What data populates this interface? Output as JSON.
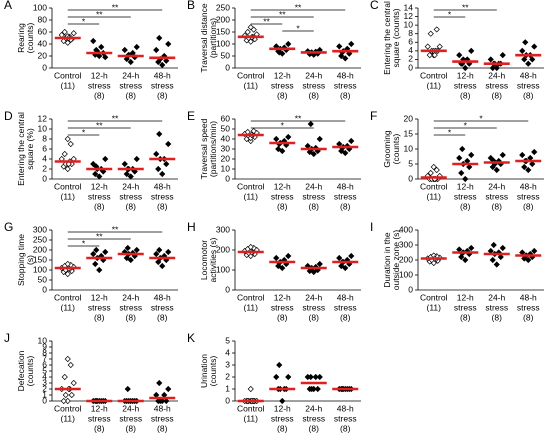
{
  "chart_data": [
    {
      "type": "dot",
      "panel": "A",
      "ylabel": [
        "Rearing",
        "(counts)"
      ],
      "categories": [
        [
          "Control",
          "(11)"
        ],
        [
          "12-h",
          "stress",
          "(8)"
        ],
        [
          "24-h",
          "stress",
          "(8)"
        ],
        [
          "48-h",
          "stress",
          "(8)"
        ]
      ],
      "ylim": [
        0,
        100
      ],
      "yticks": [
        0,
        20,
        40,
        60,
        80,
        100
      ],
      "points": [
        [
          42,
          45,
          48,
          50,
          52,
          55,
          58,
          60,
          47,
          53,
          50
        ],
        [
          20,
          22,
          25,
          28,
          35,
          45,
          18,
          30
        ],
        [
          10,
          15,
          18,
          22,
          25,
          30,
          35,
          20
        ],
        [
          5,
          10,
          12,
          15,
          20,
          30,
          40,
          50
        ]
      ],
      "means": [
        50,
        25,
        20,
        17
      ],
      "brackets": [
        {
          "groups": [
            0,
            3
          ],
          "label": "**"
        },
        {
          "groups": [
            0,
            2
          ],
          "label": "**"
        },
        {
          "groups": [
            0,
            1
          ],
          "label": "*"
        }
      ],
      "mean_color": "#e02020"
    },
    {
      "type": "dot",
      "panel": "B",
      "ylabel": [
        "Traversal distance",
        "(partitions)"
      ],
      "categories": [
        [
          "Control",
          "(11)"
        ],
        [
          "12-h",
          "stress",
          "(8)"
        ],
        [
          "24-h",
          "stress",
          "(8)"
        ],
        [
          "48-h",
          "stress",
          "(8)"
        ]
      ],
      "ylim": [
        0,
        250
      ],
      "yticks": [
        0,
        50,
        100,
        150,
        200,
        250
      ],
      "points": [
        [
          110,
          115,
          120,
          125,
          130,
          135,
          140,
          150,
          160,
          170,
          128
        ],
        [
          60,
          70,
          75,
          80,
          85,
          90,
          100,
          65
        ],
        [
          55,
          58,
          60,
          65,
          68,
          70,
          75,
          62
        ],
        [
          40,
          50,
          60,
          70,
          80,
          90,
          100,
          65
        ]
      ],
      "means": [
        130,
        80,
        65,
        70
      ],
      "brackets": [
        {
          "groups": [
            0,
            3
          ],
          "label": "**"
        },
        {
          "groups": [
            0,
            2
          ],
          "label": "**"
        },
        {
          "groups": [
            0,
            1
          ],
          "label": "**"
        },
        {
          "groups": [
            1,
            2
          ],
          "label": "*"
        }
      ],
      "mean_color": "#e02020"
    },
    {
      "type": "dot",
      "panel": "C",
      "ylabel": [
        "Entering the central",
        "square (counts)"
      ],
      "categories": [
        [
          "Control",
          "(11)"
        ],
        [
          "12-h",
          "stress",
          "(8)"
        ],
        [
          "24-h",
          "stress",
          "(8)"
        ],
        [
          "48-h",
          "stress",
          "(8)"
        ]
      ],
      "ylim": [
        0,
        14
      ],
      "yticks": [
        0,
        2,
        4,
        6,
        8,
        10,
        12,
        14
      ],
      "points": [
        [
          3,
          3,
          4,
          4,
          4,
          5,
          5,
          8,
          9,
          4,
          3
        ],
        [
          0,
          1,
          1,
          2,
          2,
          3,
          4,
          1
        ],
        [
          0,
          0,
          1,
          1,
          1,
          2,
          3,
          1
        ],
        [
          1,
          2,
          2,
          3,
          3,
          4,
          5,
          6
        ]
      ],
      "means": [
        4,
        1.5,
        1,
        3
      ],
      "brackets": [
        {
          "groups": [
            0,
            2
          ],
          "label": "**"
        },
        {
          "groups": [
            0,
            1
          ],
          "label": "*"
        }
      ],
      "mean_color": "#e02020"
    },
    {
      "type": "dot",
      "panel": "D",
      "ylabel": [
        "Entering the central",
        "square (%)"
      ],
      "categories": [
        [
          "Control",
          "(11)"
        ],
        [
          "12-h",
          "stress",
          "(8)"
        ],
        [
          "24-h",
          "stress",
          "(8)"
        ],
        [
          "48-h",
          "stress",
          "(8)"
        ]
      ],
      "ylim": [
        0,
        12
      ],
      "yticks": [
        0,
        2,
        4,
        6,
        8,
        10,
        12
      ],
      "points": [
        [
          2,
          2.5,
          3,
          3,
          3.5,
          4,
          4,
          5,
          7,
          8,
          3
        ],
        [
          0.5,
          1,
          1.5,
          2,
          2,
          3,
          4,
          2.5
        ],
        [
          0.5,
          1,
          1.5,
          2,
          2,
          3,
          4,
          2
        ],
        [
          1,
          2,
          3,
          4,
          4,
          5,
          7,
          9
        ]
      ],
      "means": [
        3.5,
        2,
        2,
        4
      ],
      "brackets": [
        {
          "groups": [
            0,
            3
          ],
          "label": "**"
        },
        {
          "groups": [
            0,
            2
          ],
          "label": "**"
        },
        {
          "groups": [
            0,
            1
          ],
          "label": "*"
        }
      ],
      "mean_color": "#e02020"
    },
    {
      "type": "dot",
      "panel": "E",
      "ylabel": [
        "Traversal speed",
        "(partitions/min)"
      ],
      "categories": [
        [
          "Control",
          "(11)"
        ],
        [
          "12-h",
          "stress",
          "(8)"
        ],
        [
          "24-h",
          "stress",
          "(8)"
        ],
        [
          "48-h",
          "stress",
          "(8)"
        ]
      ],
      "ylim": [
        0,
        60
      ],
      "yticks": [
        0,
        10,
        20,
        30,
        40,
        50,
        60
      ],
      "points": [
        [
          38,
          40,
          42,
          43,
          44,
          45,
          46,
          47,
          48,
          41,
          44
        ],
        [
          28,
          30,
          34,
          36,
          38,
          40,
          42,
          35
        ],
        [
          25,
          27,
          28,
          30,
          31,
          33,
          40,
          55
        ],
        [
          26,
          28,
          30,
          32,
          33,
          35,
          38,
          31
        ]
      ],
      "means": [
        44,
        36,
        30,
        32
      ],
      "brackets": [
        {
          "groups": [
            0,
            3
          ],
          "label": "**"
        },
        {
          "groups": [
            0,
            2
          ],
          "label": "*"
        }
      ],
      "mean_color": "#e02020"
    },
    {
      "type": "dot",
      "panel": "F",
      "ylabel": [
        "Grooming",
        "(counts)"
      ],
      "categories": [
        [
          "Control",
          "(11)"
        ],
        [
          "12-h",
          "stress",
          "(8)"
        ],
        [
          "24-h",
          "stress",
          "(8)"
        ],
        [
          "48-h",
          "stress",
          "(8)"
        ]
      ],
      "ylim": [
        0,
        20
      ],
      "yticks": [
        0,
        5,
        10,
        15,
        20
      ],
      "points": [
        [
          0,
          0,
          0,
          0,
          0,
          1,
          1,
          2,
          3,
          4,
          0
        ],
        [
          0,
          2,
          4,
          5,
          6,
          7,
          8,
          10
        ],
        [
          3,
          4,
          5,
          5,
          6,
          7,
          8,
          6
        ],
        [
          3,
          4,
          5,
          6,
          7,
          8,
          9,
          6
        ]
      ],
      "means": [
        0.5,
        5,
        5.5,
        6
      ],
      "brackets": [
        {
          "groups": [
            0,
            3
          ],
          "label": "*"
        },
        {
          "groups": [
            0,
            2
          ],
          "label": "*"
        },
        {
          "groups": [
            0,
            1
          ],
          "label": "*"
        }
      ],
      "mean_color": "#e02020"
    },
    {
      "type": "dot",
      "panel": "G",
      "ylabel": [
        "Stopping time",
        "(s)"
      ],
      "categories": [
        [
          "Control",
          "(11)"
        ],
        [
          "12-h",
          "stress",
          "(8)"
        ],
        [
          "24-h",
          "stress",
          "(8)"
        ],
        [
          "48-h",
          "stress",
          "(8)"
        ]
      ],
      "ylim": [
        0,
        300
      ],
      "yticks": [
        0,
        50,
        100,
        150,
        200,
        250,
        300
      ],
      "points": [
        [
          80,
          90,
          95,
          100,
          105,
          110,
          115,
          120,
          125,
          130,
          108
        ],
        [
          100,
          130,
          150,
          160,
          170,
          180,
          190,
          200
        ],
        [
          150,
          160,
          170,
          180,
          185,
          190,
          200,
          210
        ],
        [
          120,
          140,
          150,
          160,
          170,
          180,
          190,
          200
        ]
      ],
      "means": [
        110,
        160,
        180,
        160
      ],
      "brackets": [
        {
          "groups": [
            0,
            3
          ],
          "label": "**"
        },
        {
          "groups": [
            0,
            2
          ],
          "label": "**"
        },
        {
          "groups": [
            0,
            1
          ],
          "label": "*"
        }
      ],
      "mean_color": "#e02020"
    },
    {
      "type": "dot",
      "panel": "H",
      "ylabel": [
        "Locomotor",
        "activities (s)"
      ],
      "categories": [
        [
          "Control",
          "(11)"
        ],
        [
          "12-h",
          "stress",
          "(8)"
        ],
        [
          "24-h",
          "stress",
          "(8)"
        ],
        [
          "48-h",
          "stress",
          "(8)"
        ]
      ],
      "ylim": [
        0,
        300
      ],
      "yticks": [
        0,
        100,
        200,
        300
      ],
      "points": [
        [
          170,
          175,
          180,
          185,
          190,
          195,
          200,
          205,
          210,
          215,
          188
        ],
        [
          110,
          120,
          130,
          140,
          150,
          160,
          170,
          135
        ],
        [
          90,
          95,
          100,
          110,
          115,
          120,
          130,
          105
        ],
        [
          110,
          120,
          130,
          140,
          150,
          160,
          170,
          140
        ]
      ],
      "means": [
        190,
        140,
        110,
        140
      ],
      "brackets": [],
      "mean_color": "#e02020"
    },
    {
      "type": "dot",
      "panel": "I",
      "ylabel": [
        "Duration in the",
        "outside zone (s)"
      ],
      "categories": [
        [
          "Control",
          "(11)"
        ],
        [
          "12-h",
          "stress",
          "(8)"
        ],
        [
          "24-h",
          "stress",
          "(8)"
        ],
        [
          "48-h",
          "stress",
          "(8)"
        ]
      ],
      "ylim": [
        0,
        400
      ],
      "yticks": [
        0,
        100,
        200,
        300,
        400
      ],
      "points": [
        [
          180,
          190,
          195,
          200,
          205,
          210,
          215,
          220,
          225,
          230,
          210
        ],
        [
          200,
          220,
          240,
          250,
          260,
          270,
          280,
          245
        ],
        [
          170,
          200,
          220,
          240,
          250,
          260,
          280,
          300
        ],
        [
          200,
          210,
          220,
          230,
          240,
          250,
          260,
          225
        ]
      ],
      "means": [
        210,
        250,
        240,
        230
      ],
      "brackets": [],
      "mean_color": "#e02020"
    },
    {
      "type": "dot",
      "panel": "J",
      "ylabel": [
        "Defecation",
        "(counts)"
      ],
      "categories": [
        [
          "Control",
          "(11)"
        ],
        [
          "12-h",
          "stress",
          "(8)"
        ],
        [
          "24-h",
          "stress",
          "(8)"
        ],
        [
          "48-h",
          "stress",
          "(8)"
        ]
      ],
      "ylim": [
        0,
        10
      ],
      "yticks": [
        0,
        1,
        2,
        3,
        4,
        5,
        6,
        7,
        8,
        9,
        10
      ],
      "points": [
        [
          0,
          0,
          1,
          1,
          2,
          2,
          3,
          4,
          6,
          7,
          2
        ],
        [
          0,
          0,
          0,
          0,
          0,
          0,
          0,
          0
        ],
        [
          0,
          0,
          0,
          0,
          0,
          0,
          0,
          2
        ],
        [
          0,
          0,
          0,
          0,
          1,
          1,
          2,
          3
        ]
      ],
      "means": [
        2,
        0,
        0,
        0.5
      ],
      "brackets": [],
      "mean_color": "#e02020"
    },
    {
      "type": "dot",
      "panel": "K",
      "ylabel": [
        "Urination",
        "(counts)"
      ],
      "categories": [
        [
          "Control",
          "(11)"
        ],
        [
          "12-h",
          "stress",
          "(8)"
        ],
        [
          "24-h",
          "stress",
          "(8)"
        ],
        [
          "48-h",
          "stress",
          "(8)"
        ]
      ],
      "ylim": [
        0,
        5
      ],
      "yticks": [
        0,
        1,
        2,
        3,
        4,
        5
      ],
      "points": [
        [
          0,
          0,
          0,
          0,
          0,
          0,
          0,
          0,
          0,
          1,
          0
        ],
        [
          0,
          1,
          1,
          1,
          1,
          2,
          2,
          3
        ],
        [
          1,
          1,
          1,
          1,
          2,
          2,
          2,
          2
        ],
        [
          1,
          1,
          1,
          1,
          1,
          1,
          1,
          1
        ]
      ],
      "means": [
        0,
        1,
        1.5,
        1
      ],
      "brackets": [],
      "mean_color": "#e02020"
    }
  ]
}
